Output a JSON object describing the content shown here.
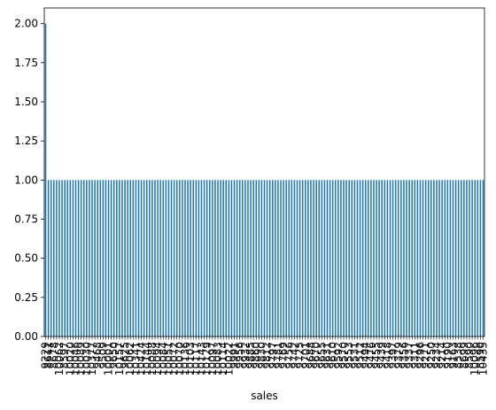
{
  "chart_data": {
    "type": "bar",
    "title": "",
    "xlabel": "sales",
    "ylabel": "",
    "ylim": [
      0,
      2.1
    ],
    "yticks": [
      0.0,
      0.25,
      0.5,
      0.75,
      1.0,
      1.25,
      1.5,
      1.75,
      2.0
    ],
    "ytick_labels": [
      "0.00",
      "0.25",
      "0.50",
      "0.75",
      "1.00",
      "1.25",
      "1.50",
      "1.75",
      "2.00"
    ],
    "grid": false,
    "legend": false,
    "bar_color": "#1f77b4",
    "category_count": 161,
    "values": [
      2,
      1,
      1,
      1,
      1,
      1,
      1,
      1,
      1,
      1,
      1,
      1,
      1,
      1,
      1,
      1,
      1,
      1,
      1,
      1,
      1,
      1,
      1,
      1,
      1,
      1,
      1,
      1,
      1,
      1,
      1,
      1,
      1,
      1,
      1,
      1,
      1,
      1,
      1,
      1,
      1,
      1,
      1,
      1,
      1,
      1,
      1,
      1,
      1,
      1,
      1,
      1,
      1,
      1,
      1,
      1,
      1,
      1,
      1,
      1,
      1,
      1,
      1,
      1,
      1,
      1,
      1,
      1,
      1,
      1,
      1,
      1,
      1,
      1,
      1,
      1,
      1,
      1,
      1,
      1,
      1,
      1,
      1,
      1,
      1,
      1,
      1,
      1,
      1,
      1,
      1,
      1,
      1,
      1,
      1,
      1,
      1,
      1,
      1,
      1,
      1,
      1,
      1,
      1,
      1,
      1,
      1,
      1,
      1,
      1,
      1,
      1,
      1,
      1,
      1,
      1,
      1,
      1,
      1,
      1,
      1,
      1,
      1,
      1,
      1,
      1,
      1,
      1,
      1,
      1,
      1,
      1,
      1,
      1,
      1,
      1,
      1,
      1,
      1,
      1,
      1,
      1,
      1,
      1,
      1,
      1,
      1,
      1,
      1,
      1,
      1,
      1,
      1,
      1,
      1,
      1,
      1,
      1,
      1,
      1,
      1
    ],
    "visible_x_labels": [
      {
        "index": 0,
        "label": "9229"
      },
      {
        "index": 1,
        "label": "8611"
      },
      {
        "index": 3,
        "label": "8678"
      },
      {
        "index": 5,
        "label": "10062"
      },
      {
        "index": 7,
        "label": "8597"
      },
      {
        "index": 9,
        "label": "10020"
      },
      {
        "index": 11,
        "label": "10046"
      },
      {
        "index": 13,
        "label": "10089"
      },
      {
        "index": 15,
        "label": "10030"
      },
      {
        "index": 17,
        "label": "10377"
      },
      {
        "index": 19,
        "label": "9468"
      },
      {
        "index": 21,
        "label": "9509"
      },
      {
        "index": 23,
        "label": "10001"
      },
      {
        "index": 25,
        "label": "9650"
      },
      {
        "index": 27,
        "label": "10157"
      },
      {
        "index": 29,
        "label": "9625"
      },
      {
        "index": 31,
        "label": "10062"
      },
      {
        "index": 33,
        "label": "10341"
      },
      {
        "index": 35,
        "label": "10424"
      },
      {
        "index": 37,
        "label": "10144"
      },
      {
        "index": 39,
        "label": "10088"
      },
      {
        "index": 41,
        "label": "10094"
      },
      {
        "index": 43,
        "label": "10084"
      },
      {
        "index": 45,
        "label": "10051"
      },
      {
        "index": 47,
        "label": "10072"
      },
      {
        "index": 49,
        "label": "10070"
      },
      {
        "index": 51,
        "label": "10136"
      },
      {
        "index": 53,
        "label": "10103"
      },
      {
        "index": 55,
        "label": "10117"
      },
      {
        "index": 57,
        "label": "10143"
      },
      {
        "index": 59,
        "label": "10129"
      },
      {
        "index": 61,
        "label": "10097"
      },
      {
        "index": 63,
        "label": "10083"
      },
      {
        "index": 65,
        "label": "10114"
      },
      {
        "index": 67,
        "label": "10022"
      },
      {
        "index": 69,
        "label": "9991"
      },
      {
        "index": 71,
        "label": "9956"
      },
      {
        "index": 73,
        "label": "9932"
      },
      {
        "index": 75,
        "label": "9885"
      },
      {
        "index": 77,
        "label": "9860"
      },
      {
        "index": 79,
        "label": "9830"
      },
      {
        "index": 81,
        "label": "9812"
      },
      {
        "index": 83,
        "label": "9797"
      },
      {
        "index": 85,
        "label": "9781"
      },
      {
        "index": 87,
        "label": "9769"
      },
      {
        "index": 89,
        "label": "9756"
      },
      {
        "index": 91,
        "label": "9742"
      },
      {
        "index": 93,
        "label": "9725"
      },
      {
        "index": 95,
        "label": "9701"
      },
      {
        "index": 97,
        "label": "9688"
      },
      {
        "index": 99,
        "label": "9670"
      },
      {
        "index": 101,
        "label": "9655"
      },
      {
        "index": 103,
        "label": "9631"
      },
      {
        "index": 105,
        "label": "9610"
      },
      {
        "index": 107,
        "label": "9592"
      },
      {
        "index": 109,
        "label": "9570"
      },
      {
        "index": 111,
        "label": "9553"
      },
      {
        "index": 113,
        "label": "9531"
      },
      {
        "index": 115,
        "label": "9512"
      },
      {
        "index": 117,
        "label": "9494"
      },
      {
        "index": 119,
        "label": "9476"
      },
      {
        "index": 121,
        "label": "9455"
      },
      {
        "index": 123,
        "label": "9439"
      },
      {
        "index": 125,
        "label": "9418"
      },
      {
        "index": 127,
        "label": "9397"
      },
      {
        "index": 129,
        "label": "9379"
      },
      {
        "index": 131,
        "label": "9356"
      },
      {
        "index": 133,
        "label": "9337"
      },
      {
        "index": 135,
        "label": "9311"
      },
      {
        "index": 137,
        "label": "9296"
      },
      {
        "index": 139,
        "label": "9271"
      },
      {
        "index": 141,
        "label": "9250"
      },
      {
        "index": 143,
        "label": "9234"
      },
      {
        "index": 145,
        "label": "9214"
      },
      {
        "index": 147,
        "label": "9190"
      },
      {
        "index": 149,
        "label": "9163"
      },
      {
        "index": 151,
        "label": "8538"
      },
      {
        "index": 153,
        "label": "8699"
      },
      {
        "index": 155,
        "label": "8590"
      },
      {
        "index": 157,
        "label": "10096"
      },
      {
        "index": 159,
        "label": "8590"
      },
      {
        "index": 160,
        "label": "10435"
      }
    ]
  }
}
